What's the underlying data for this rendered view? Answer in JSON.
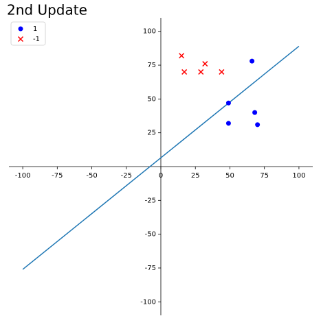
{
  "chart_data": {
    "type": "scatter",
    "title": "2nd Update",
    "series": [
      {
        "name": "1",
        "color": "#0000ff",
        "marker": "circle",
        "x": [
          66,
          49,
          68,
          49,
          70
        ],
        "values": [
          78,
          47,
          40,
          32,
          31
        ]
      },
      {
        "name": "-1",
        "color": "#ff0000",
        "marker": "x",
        "x": [
          15,
          17,
          32,
          29,
          44
        ],
        "values": [
          82,
          70,
          76,
          70,
          70
        ]
      }
    ],
    "lines": [
      {
        "color": "#1f77b4",
        "x": [
          -100,
          100
        ],
        "values": [
          -76,
          89
        ]
      }
    ],
    "xlim": [
      -110,
      110
    ],
    "ylim": [
      -110,
      110
    ],
    "xticks": [
      -100,
      -75,
      -50,
      -25,
      0,
      25,
      50,
      75,
      100
    ],
    "yticks": [
      -100,
      -75,
      -50,
      -25,
      25,
      50,
      75,
      100
    ],
    "legend": "upper left"
  }
}
